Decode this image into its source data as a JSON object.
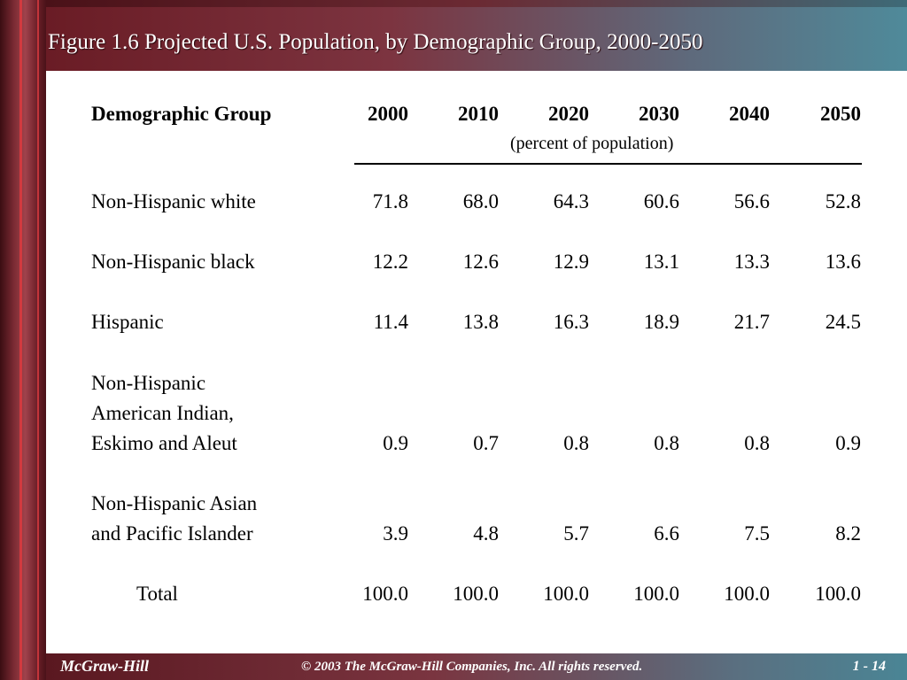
{
  "title": "Figure 1.6  Projected U.S. Population, by Demographic Group, 2000-2050",
  "table": {
    "group_header": "Demographic Group",
    "years": [
      "2000",
      "2010",
      "2020",
      "2030",
      "2040",
      "2050"
    ],
    "unit_note": "(percent of population)",
    "rows": [
      {
        "label_lines": [
          "Non-Hispanic white"
        ],
        "values": [
          "71.8",
          "68.0",
          "64.3",
          "60.6",
          "56.6",
          "52.8"
        ]
      },
      {
        "label_lines": [
          "Non-Hispanic black"
        ],
        "values": [
          "12.2",
          "12.6",
          "12.9",
          "13.1",
          "13.3",
          "13.6"
        ]
      },
      {
        "label_lines": [
          "Hispanic"
        ],
        "values": [
          "11.4",
          "13.8",
          "16.3",
          "18.9",
          "21.7",
          "24.5"
        ]
      },
      {
        "label_lines": [
          "Non-Hispanic",
          "American Indian,",
          "Eskimo and Aleut"
        ],
        "values": [
          "0.9",
          "0.7",
          "0.8",
          "0.8",
          "0.8",
          "0.9"
        ]
      },
      {
        "label_lines": [
          "Non-Hispanic Asian",
          "and Pacific Islander"
        ],
        "values": [
          "3.9",
          "4.8",
          "5.7",
          "6.6",
          "7.5",
          "8.2"
        ]
      },
      {
        "label_lines": [
          "Total"
        ],
        "values": [
          "100.0",
          "100.0",
          "100.0",
          "100.0",
          "100.0",
          "100.0"
        ]
      }
    ]
  },
  "footer": {
    "publisher": "McGraw-Hill",
    "copyright": "© 2003 The McGraw-Hill Companies, Inc. All rights reserved.",
    "page": "1 - 14"
  }
}
